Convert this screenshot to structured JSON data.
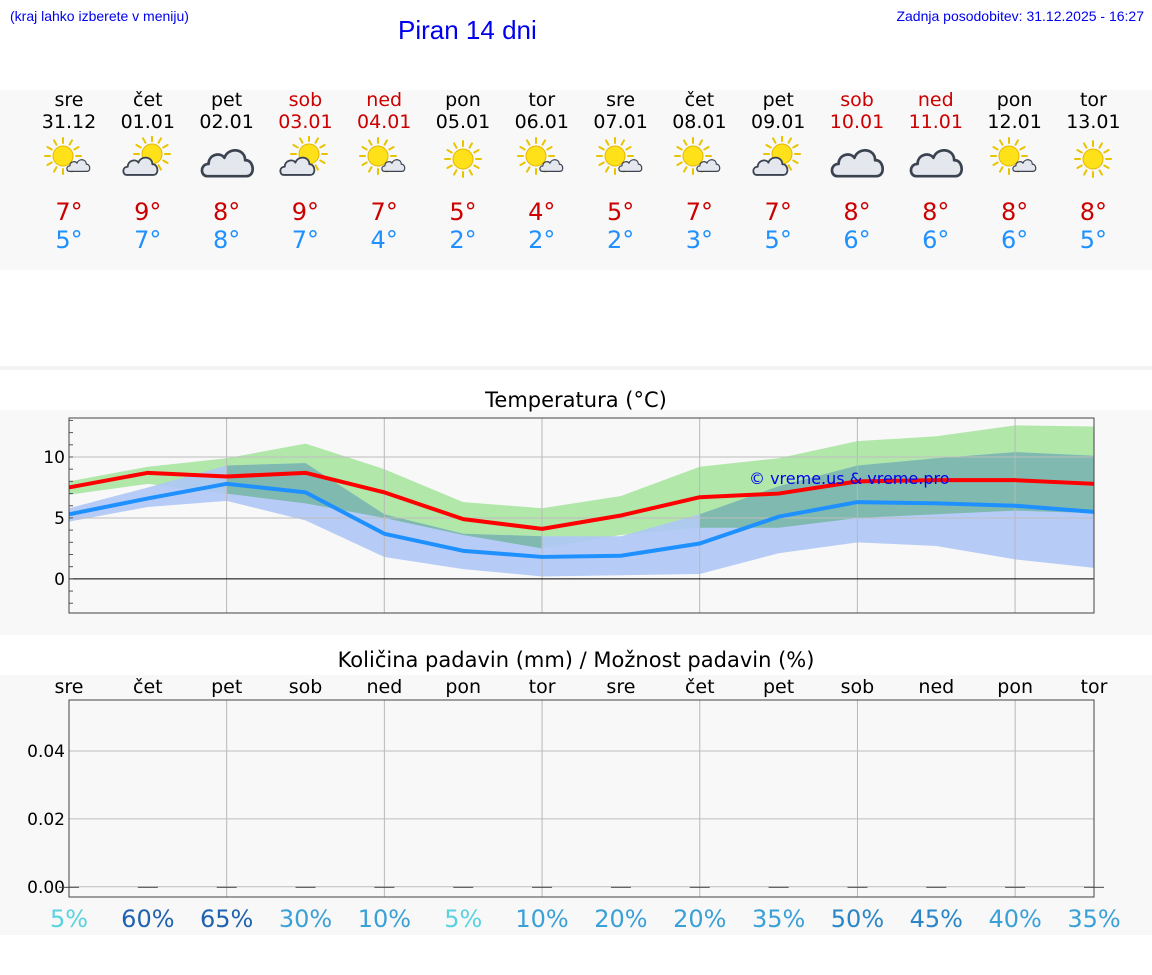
{
  "header": {
    "note": "(kraj lahko izberete v meniju)",
    "title": "Piran 14 dni",
    "updated": "Zadnja posodobitev: 31.12.2025 - 16:27"
  },
  "days": [
    {
      "wd": "sre",
      "date": "31.12",
      "icon": "sun-small-cloud-icon",
      "max": "7°",
      "min": "5°",
      "weekend": false
    },
    {
      "wd": "čet",
      "date": "01.01",
      "icon": "cloud-sun-icon",
      "max": "9°",
      "min": "7°",
      "weekend": false
    },
    {
      "wd": "pet",
      "date": "02.01",
      "icon": "overcast-icon",
      "max": "8°",
      "min": "8°",
      "weekend": false
    },
    {
      "wd": "sob",
      "date": "03.01",
      "icon": "cloud-sun-icon",
      "max": "9°",
      "min": "7°",
      "weekend": true
    },
    {
      "wd": "ned",
      "date": "04.01",
      "icon": "sun-small-cloud-icon",
      "max": "7°",
      "min": "4°",
      "weekend": true
    },
    {
      "wd": "pon",
      "date": "05.01",
      "icon": "sun-icon",
      "max": "5°",
      "min": "2°",
      "weekend": false
    },
    {
      "wd": "tor",
      "date": "06.01",
      "icon": "sun-small-cloud-icon",
      "max": "4°",
      "min": "2°",
      "weekend": false
    },
    {
      "wd": "sre",
      "date": "07.01",
      "icon": "sun-small-cloud-icon",
      "max": "5°",
      "min": "2°",
      "weekend": false
    },
    {
      "wd": "čet",
      "date": "08.01",
      "icon": "sun-small-cloud-icon",
      "max": "7°",
      "min": "3°",
      "weekend": false
    },
    {
      "wd": "pet",
      "date": "09.01",
      "icon": "cloud-sun-icon",
      "max": "7°",
      "min": "5°",
      "weekend": false
    },
    {
      "wd": "sob",
      "date": "10.01",
      "icon": "overcast-icon",
      "max": "8°",
      "min": "6°",
      "weekend": true
    },
    {
      "wd": "ned",
      "date": "11.01",
      "icon": "overcast-icon",
      "max": "8°",
      "min": "6°",
      "weekend": true
    },
    {
      "wd": "pon",
      "date": "12.01",
      "icon": "sun-small-cloud-icon",
      "max": "8°",
      "min": "6°",
      "weekend": false
    },
    {
      "wd": "tor",
      "date": "13.01",
      "icon": "sun-icon",
      "max": "8°",
      "min": "5°",
      "weekend": false
    }
  ],
  "chart_data": [
    {
      "type": "line",
      "title": "Temperatura (°C)",
      "watermark": "© vreme.us & vreme.pro",
      "x": [
        0,
        1,
        2,
        3,
        4,
        5,
        6,
        7,
        8,
        9,
        10,
        11,
        12,
        13
      ],
      "ylim": [
        -2.8,
        13.2
      ],
      "yticks": [
        0,
        5,
        10
      ],
      "ytick_labels": [
        "0",
        "5",
        "10"
      ],
      "series": [
        {
          "name": "max",
          "color": "#ff0000",
          "values": [
            7.5,
            8.7,
            8.4,
            8.7,
            7.1,
            4.9,
            4.1,
            5.2,
            6.7,
            7.0,
            8.0,
            8.1,
            8.1,
            7.8
          ]
        },
        {
          "name": "min",
          "color": "#1e90ff",
          "values": [
            5.3,
            6.6,
            7.8,
            7.1,
            3.7,
            2.3,
            1.8,
            1.9,
            2.9,
            5.1,
            6.3,
            6.2,
            6.0,
            5.5
          ]
        }
      ],
      "bands": [
        {
          "name": "max-range",
          "color": "#a8e6a1",
          "lower": [
            6.9,
            7.8,
            7.0,
            6.2,
            5.0,
            3.6,
            2.5,
            3.6,
            4.2,
            4.2,
            5.0,
            5.3,
            5.6,
            5.4
          ],
          "upper": [
            8.0,
            9.2,
            9.9,
            11.1,
            9.0,
            6.3,
            5.8,
            6.8,
            9.2,
            9.9,
            11.3,
            11.7,
            12.6,
            12.5
          ]
        },
        {
          "name": "min-range",
          "color": "#aec6f5",
          "lower": [
            4.7,
            5.9,
            6.4,
            4.8,
            1.8,
            0.8,
            0.2,
            0.3,
            0.4,
            2.1,
            3.0,
            2.7,
            1.6,
            0.9
          ],
          "upper": [
            5.8,
            7.5,
            9.3,
            9.5,
            5.3,
            3.7,
            3.5,
            3.5,
            5.3,
            7.6,
            9.3,
            9.9,
            10.4,
            10.1
          ]
        }
      ]
    },
    {
      "type": "bar",
      "title": "Količina padavin (mm) / Možnost padavin (%)",
      "categories": [
        "sre",
        "čet",
        "pet",
        "sob",
        "ned",
        "pon",
        "tor",
        "sre",
        "čet",
        "pet",
        "sob",
        "ned",
        "pon",
        "tor"
      ],
      "values": [
        0,
        0,
        0,
        0,
        0,
        0,
        0,
        0,
        0,
        0,
        0,
        0,
        0,
        0
      ],
      "ylim": [
        -0.003,
        0.055
      ],
      "yticks": [
        0.0,
        0.02,
        0.04
      ],
      "ytick_labels": [
        "0.00",
        "0.02",
        "0.04"
      ],
      "probabilities": [
        "5%",
        "60%",
        "65%",
        "30%",
        "10%",
        "5%",
        "10%",
        "20%",
        "20%",
        "35%",
        "50%",
        "45%",
        "40%",
        "35%"
      ],
      "probability_values": [
        5,
        60,
        65,
        30,
        10,
        5,
        10,
        20,
        20,
        35,
        50,
        45,
        40,
        35
      ]
    }
  ]
}
